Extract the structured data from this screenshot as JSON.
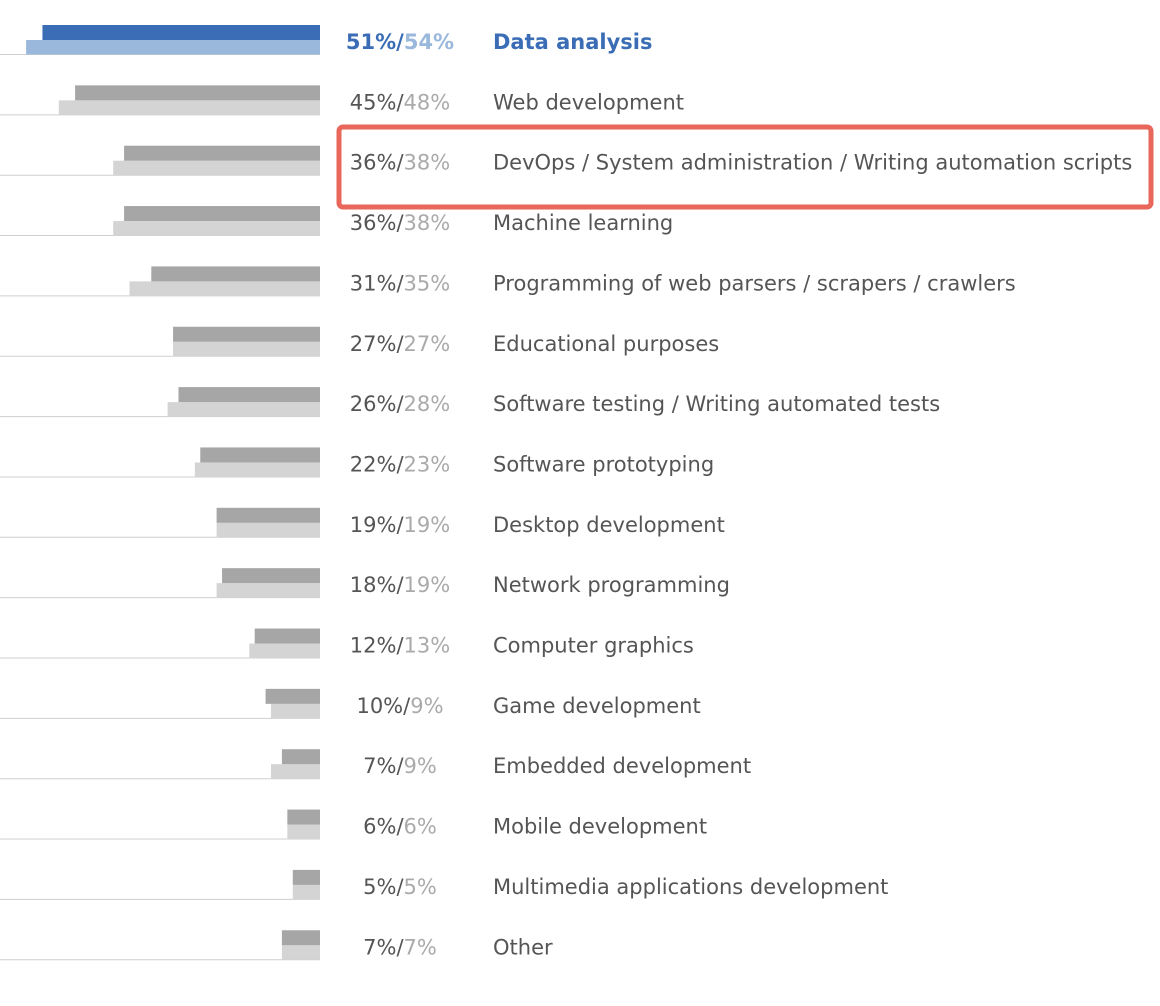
{
  "chart_data": {
    "type": "bar",
    "orientation": "horizontal-left",
    "categories": [
      "Data analysis",
      "Web development",
      "DevOps / System administration / Writing automation scripts",
      "Machine learning",
      "Programming of web parsers / scrapers / crawlers",
      "Educational purposes",
      "Software testing / Writing automated tests",
      "Software prototyping",
      "Desktop development",
      "Network programming",
      "Computer graphics",
      "Game development",
      "Embedded development",
      "Mobile development",
      "Multimedia applications development",
      "Other"
    ],
    "series": [
      {
        "color": "#a6a6a6",
        "highlight_color": "#3a6db5",
        "values": [
          51,
          45,
          36,
          36,
          31,
          27,
          26,
          22,
          19,
          18,
          12,
          10,
          7,
          6,
          5,
          7
        ],
        "value_labels": [
          "51%",
          "45%",
          "36%",
          "36%",
          "31%",
          "27%",
          "26%",
          "22%",
          "19%",
          "18%",
          "12%",
          "10%",
          "7%",
          "6%",
          "5%",
          "7%"
        ]
      },
      {
        "color": "#d4d4d4",
        "highlight_color": "#9ab8dc",
        "values": [
          54,
          48,
          38,
          38,
          35,
          27,
          28,
          23,
          19,
          19,
          13,
          9,
          9,
          6,
          5,
          7
        ],
        "value_labels": [
          "54%",
          "48%",
          "38%",
          "38%",
          "35%",
          "27%",
          "28%",
          "23%",
          "19%",
          "19%",
          "13%",
          "9%",
          "9%",
          "6%",
          "5%",
          "7%"
        ]
      }
    ],
    "label_separator": "/",
    "highlight_category": "Data analysis",
    "xlim": [
      0,
      58.8
    ]
  }
}
